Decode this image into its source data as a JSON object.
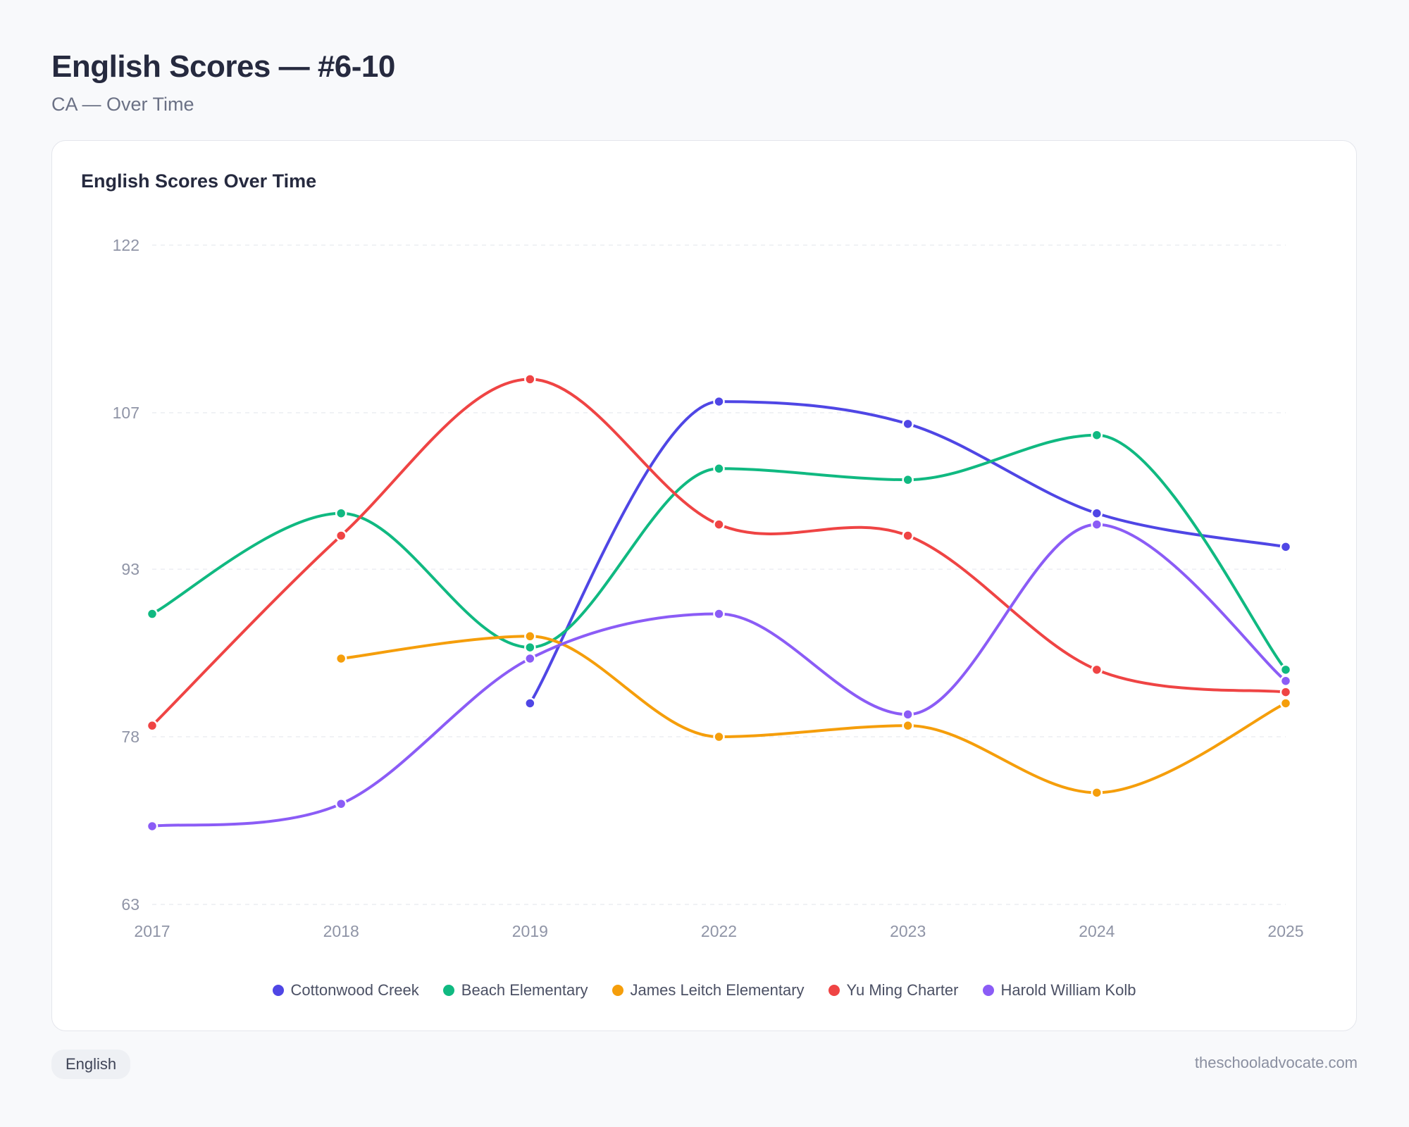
{
  "header": {
    "title": "English Scores — #6-10",
    "subtitle": "CA — Over Time"
  },
  "card": {
    "title": "English Scores Over Time"
  },
  "footer": {
    "tag": "English",
    "site": "theschooladvocate.com"
  },
  "chart_data": {
    "type": "line",
    "title": "English Scores Over Time",
    "x": [
      "2017",
      "2018",
      "2019",
      "2022",
      "2023",
      "2024",
      "2025"
    ],
    "yticks": [
      63,
      78,
      93,
      107,
      122
    ],
    "ylim": [
      63,
      122
    ],
    "grid": true,
    "legend_position": "bottom",
    "series": [
      {
        "name": "Cottonwood Creek",
        "color": "#4f46e5",
        "values": [
          null,
          null,
          81,
          108,
          106,
          98,
          95
        ]
      },
      {
        "name": "Beach Elementary",
        "color": "#10b981",
        "values": [
          89,
          98,
          86,
          102,
          101,
          105,
          84
        ]
      },
      {
        "name": "James Leitch Elementary",
        "color": "#f59e0b",
        "values": [
          null,
          85,
          87,
          78,
          79,
          73,
          81
        ]
      },
      {
        "name": "Yu Ming Charter",
        "color": "#ef4444",
        "values": [
          79,
          96,
          110,
          97,
          96,
          84,
          82
        ]
      },
      {
        "name": "Harold William Kolb",
        "color": "#8b5cf6",
        "values": [
          70,
          72,
          85,
          89,
          80,
          97,
          83
        ]
      }
    ]
  }
}
